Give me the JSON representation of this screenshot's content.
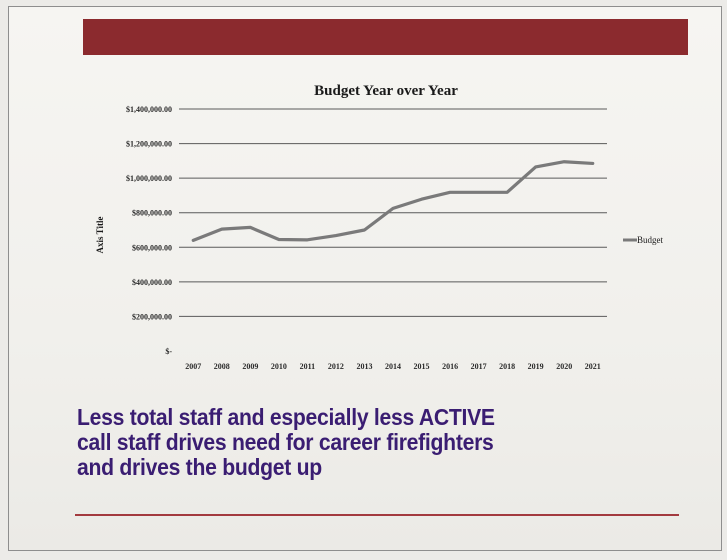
{
  "slide": {
    "accent_color": "#8b2a2e",
    "caption_color": "#3a1d72",
    "caption_lines": [
      "Less total staff and especially less ACTIVE",
      "call staff drives need for career firefighters",
      "and drives the budget up"
    ]
  },
  "chart_data": {
    "type": "line",
    "title": "Budget Year over Year",
    "xlabel": "",
    "ylabel": "Axis Title",
    "categories": [
      "2007",
      "2008",
      "2009",
      "2010",
      "2011",
      "2012",
      "2013",
      "2014",
      "2015",
      "2016",
      "2017",
      "2018",
      "2019",
      "2020",
      "2021"
    ],
    "series": [
      {
        "name": "Budget",
        "color": "#7a7a7a",
        "values": [
          640000,
          705000,
          715000,
          645000,
          643000,
          668000,
          700000,
          825000,
          878000,
          918000,
          918000,
          918000,
          1065000,
          1095000,
          1085000
        ]
      }
    ],
    "ylim": [
      0,
      1400000
    ],
    "yticks": [
      0,
      200000,
      400000,
      600000,
      800000,
      1000000,
      1200000,
      1400000
    ],
    "ytick_labels": [
      "$-",
      "$200,000.00",
      "$400,000.00",
      "$600,000.00",
      "$800,000.00",
      "$1,000,000.00",
      "$1,200,000.00",
      "$1,400,000.00"
    ],
    "grid": true,
    "legend": "right"
  }
}
